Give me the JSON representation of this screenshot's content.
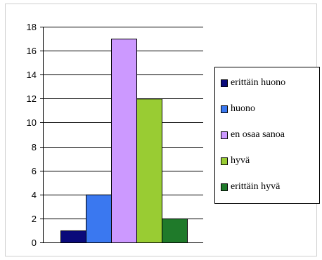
{
  "chart_data": {
    "type": "bar",
    "categories": [
      "erittäin huono",
      "huono",
      "en osaa sanoa",
      "hyvä",
      "erittäin hyvä"
    ],
    "values": [
      1,
      4,
      17,
      12,
      2
    ],
    "colors": [
      "#0a0a7a",
      "#3a78f0",
      "#cc99ff",
      "#99cc33",
      "#1f7a2a"
    ],
    "ylim": [
      0,
      18
    ],
    "yticks": [
      "0",
      "2",
      "4",
      "6",
      "8",
      "10",
      "12",
      "14",
      "16",
      "18"
    ],
    "grid": true,
    "legend": "right",
    "title": "",
    "xlabel": "",
    "ylabel": ""
  }
}
